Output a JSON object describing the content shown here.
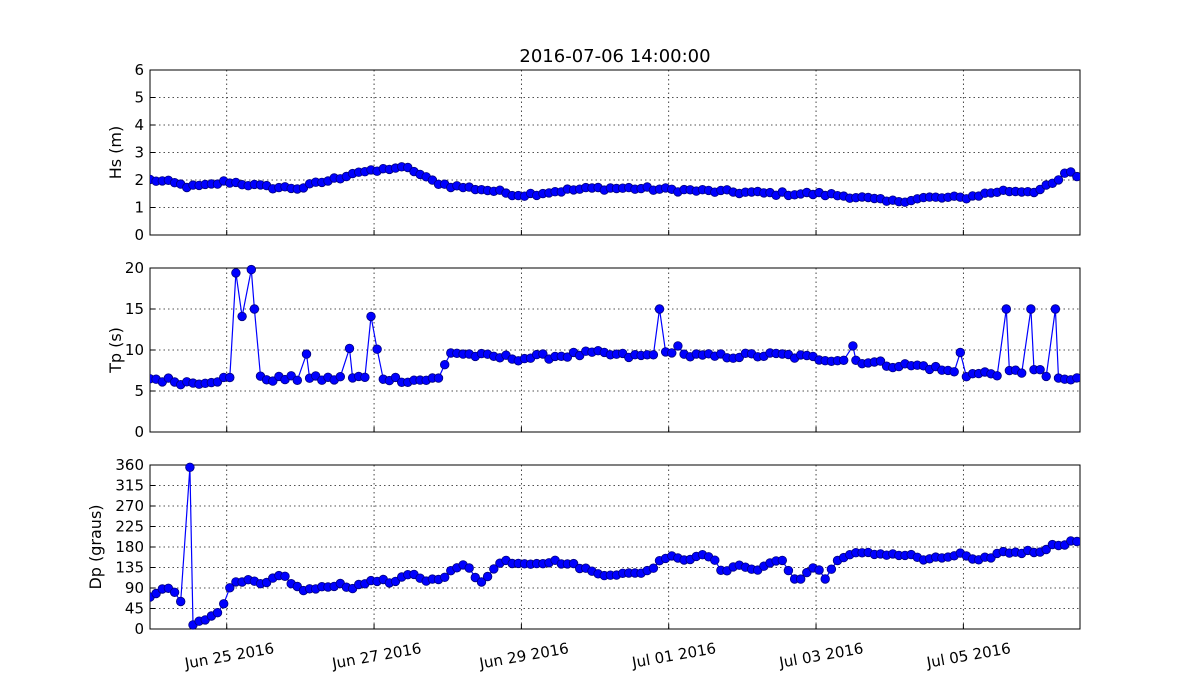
{
  "figure": {
    "title": "2016-07-06 14:00:00",
    "series_color": "#0000ff",
    "marker_edge_color": "#000080"
  },
  "chart_data": [
    {
      "type": "line",
      "panel": "top",
      "ylabel": "Hs (m)",
      "ylim": [
        0,
        6
      ],
      "yticks": [
        0,
        1,
        2,
        3,
        4,
        5,
        6
      ],
      "grid": true,
      "xlim": [
        "2016-06-23T23:00",
        "2016-07-06T14:00"
      ],
      "anchors": [
        [
          "2016-06-24T00:00",
          2.0
        ],
        [
          "2016-06-24T06:00",
          1.9
        ],
        [
          "2016-06-24T12:00",
          1.75
        ],
        [
          "2016-06-24T18:00",
          1.8
        ],
        [
          "2016-06-25T00:00",
          1.95
        ],
        [
          "2016-06-25T12:00",
          1.75
        ],
        [
          "2016-06-26T00:00",
          1.7
        ],
        [
          "2016-06-26T06:00",
          1.9
        ],
        [
          "2016-06-26T12:00",
          2.05
        ],
        [
          "2016-06-26T18:00",
          2.3
        ],
        [
          "2016-06-27T00:00",
          2.3
        ],
        [
          "2016-06-27T06:00",
          2.45
        ],
        [
          "2016-06-27T12:00",
          2.4
        ],
        [
          "2016-06-27T18:00",
          2.0
        ],
        [
          "2016-06-28T00:00",
          1.8
        ],
        [
          "2016-06-28T12:00",
          1.65
        ],
        [
          "2016-06-29T00:00",
          1.45
        ],
        [
          "2016-06-29T12:00",
          1.6
        ],
        [
          "2016-06-30T00:00",
          1.7
        ],
        [
          "2016-06-30T12:00",
          1.7
        ],
        [
          "2016-07-01T00:00",
          1.65
        ],
        [
          "2016-07-01T12:00",
          1.6
        ],
        [
          "2016-07-02T00:00",
          1.55
        ],
        [
          "2016-07-02T12:00",
          1.5
        ],
        [
          "2016-07-03T00:00",
          1.5
        ],
        [
          "2016-07-03T12:00",
          1.4
        ],
        [
          "2016-07-04T00:00",
          1.2
        ],
        [
          "2016-07-04T12:00",
          1.35
        ],
        [
          "2016-07-05T00:00",
          1.35
        ],
        [
          "2016-07-05T12:00",
          1.6
        ],
        [
          "2016-07-06T00:00",
          1.6
        ],
        [
          "2016-07-06T06:00",
          1.9
        ],
        [
          "2016-07-06T10:00",
          2.3
        ],
        [
          "2016-07-06T14:00",
          2.1
        ]
      ],
      "outliers": []
    },
    {
      "type": "line",
      "panel": "middle",
      "ylabel": "Tp (s)",
      "ylim": [
        0,
        20
      ],
      "yticks": [
        0,
        5,
        10,
        15,
        20
      ],
      "grid": true,
      "xlim": [
        "2016-06-23T23:00",
        "2016-07-06T14:00"
      ],
      "anchors": [
        [
          "2016-06-24T00:00",
          6.5
        ],
        [
          "2016-06-24T12:00",
          6.0
        ],
        [
          "2016-06-25T00:00",
          6.5
        ],
        [
          "2016-06-25T12:00",
          6.5
        ],
        [
          "2016-06-26T00:00",
          6.5
        ],
        [
          "2016-06-26T12:00",
          6.5
        ],
        [
          "2016-06-27T00:00",
          6.7
        ],
        [
          "2016-06-27T12:00",
          6.3
        ],
        [
          "2016-06-27T22:00",
          6.5
        ],
        [
          "2016-06-28T00:00",
          9.8
        ],
        [
          "2016-06-28T12:00",
          9.2
        ],
        [
          "2016-06-29T00:00",
          9.0
        ],
        [
          "2016-06-29T12:00",
          9.3
        ],
        [
          "2016-06-30T00:00",
          9.6
        ],
        [
          "2016-06-30T12:00",
          9.2
        ],
        [
          "2016-07-01T00:00",
          9.5
        ],
        [
          "2016-07-01T12:00",
          9.2
        ],
        [
          "2016-07-02T00:00",
          9.3
        ],
        [
          "2016-07-02T12:00",
          9.4
        ],
        [
          "2016-07-03T00:00",
          9.0
        ],
        [
          "2016-07-03T12:00",
          8.8
        ],
        [
          "2016-07-04T00:00",
          8.2
        ],
        [
          "2016-07-04T12:00",
          8.0
        ],
        [
          "2016-07-05T00:00",
          7.0
        ],
        [
          "2016-07-05T12:00",
          7.2
        ],
        [
          "2016-07-06T00:00",
          7.5
        ],
        [
          "2016-07-06T06:00",
          6.2
        ],
        [
          "2016-07-06T14:00",
          6.5
        ]
      ],
      "outliers": [
        [
          "2016-06-25T03:00",
          19.4
        ],
        [
          "2016-06-25T05:00",
          14.1
        ],
        [
          "2016-06-25T08:00",
          19.8
        ],
        [
          "2016-06-25T09:00",
          15.0
        ],
        [
          "2016-06-26T02:00",
          9.5
        ],
        [
          "2016-06-26T16:00",
          10.2
        ],
        [
          "2016-06-26T23:00",
          14.1
        ],
        [
          "2016-06-27T01:00",
          10.1
        ],
        [
          "2016-06-30T21:00",
          15.0
        ],
        [
          "2016-07-01T03:00",
          10.5
        ],
        [
          "2016-07-03T12:00",
          10.5
        ],
        [
          "2016-07-04T23:00",
          9.7
        ],
        [
          "2016-07-05T14:00",
          15.0
        ],
        [
          "2016-07-05T21:00",
          15.0
        ],
        [
          "2016-07-05T22:00",
          15.0
        ],
        [
          "2016-07-06T05:00",
          13.4
        ],
        [
          "2016-07-06T06:00",
          15.0
        ]
      ]
    },
    {
      "type": "line",
      "panel": "bottom",
      "ylabel": "Dp (graus)",
      "ylim": [
        0,
        360
      ],
      "yticks": [
        0,
        45,
        90,
        135,
        180,
        225,
        270,
        315,
        360
      ],
      "grid": true,
      "xlim": [
        "2016-06-23T23:00",
        "2016-07-06T14:00"
      ],
      "xticks": [
        "2016-06-25",
        "2016-06-27",
        "2016-06-29",
        "2016-07-01",
        "2016-07-03",
        "2016-07-05"
      ],
      "xtick_labels": [
        "Jun 25 2016",
        "Jun 27 2016",
        "Jun 29 2016",
        "Jul 01 2016",
        "Jul 03 2016",
        "Jul 05 2016"
      ],
      "anchors": [
        [
          "2016-06-23T23:00",
          70
        ],
        [
          "2016-06-24T04:00",
          90
        ],
        [
          "2016-06-24T08:00",
          80
        ],
        [
          "2016-06-24T10:00",
          45
        ],
        [
          "2016-06-24T13:00",
          12
        ],
        [
          "2016-06-24T16:00",
          15
        ],
        [
          "2016-06-24T22:00",
          45
        ],
        [
          "2016-06-25T02:00",
          100
        ],
        [
          "2016-06-25T08:00",
          105
        ],
        [
          "2016-06-25T12:00",
          95
        ],
        [
          "2016-06-25T18:00",
          120
        ],
        [
          "2016-06-26T00:00",
          85
        ],
        [
          "2016-06-26T08:00",
          90
        ],
        [
          "2016-06-26T12:00",
          100
        ],
        [
          "2016-06-26T18:00",
          90
        ],
        [
          "2016-06-27T00:00",
          110
        ],
        [
          "2016-06-27T06:00",
          100
        ],
        [
          "2016-06-27T12:00",
          120
        ],
        [
          "2016-06-27T18:00",
          105
        ],
        [
          "2016-06-28T00:00",
          120
        ],
        [
          "2016-06-28T04:00",
          140
        ],
        [
          "2016-06-28T08:00",
          130
        ],
        [
          "2016-06-28T10:00",
          100
        ],
        [
          "2016-06-28T18:00",
          150
        ],
        [
          "2016-06-29T00:00",
          145
        ],
        [
          "2016-06-29T12:00",
          148
        ],
        [
          "2016-06-29T20:00",
          135
        ],
        [
          "2016-06-30T00:00",
          122
        ],
        [
          "2016-06-30T12:00",
          120
        ],
        [
          "2016-06-30T18:00",
          130
        ],
        [
          "2016-07-01T00:00",
          165
        ],
        [
          "2016-07-01T06:00",
          150
        ],
        [
          "2016-07-01T12:00",
          170
        ],
        [
          "2016-07-01T18:00",
          125
        ],
        [
          "2016-07-02T00:00",
          140
        ],
        [
          "2016-07-02T06:00",
          130
        ],
        [
          "2016-07-02T12:00",
          155
        ],
        [
          "2016-07-02T18:00",
          105
        ],
        [
          "2016-07-03T00:00",
          140
        ],
        [
          "2016-07-03T03:00",
          110
        ],
        [
          "2016-07-03T08:00",
          160
        ],
        [
          "2016-07-03T14:00",
          165
        ],
        [
          "2016-07-04T00:00",
          165
        ],
        [
          "2016-07-04T08:00",
          160
        ],
        [
          "2016-07-04T12:00",
          150
        ],
        [
          "2016-07-05T00:00",
          165
        ],
        [
          "2016-07-05T04:00",
          145
        ],
        [
          "2016-07-05T12:00",
          168
        ],
        [
          "2016-07-06T00:00",
          170
        ],
        [
          "2016-07-06T06:00",
          185
        ],
        [
          "2016-07-06T14:00",
          195
        ]
      ],
      "outliers": [
        [
          "2016-06-24T12:00",
          355
        ]
      ]
    }
  ]
}
